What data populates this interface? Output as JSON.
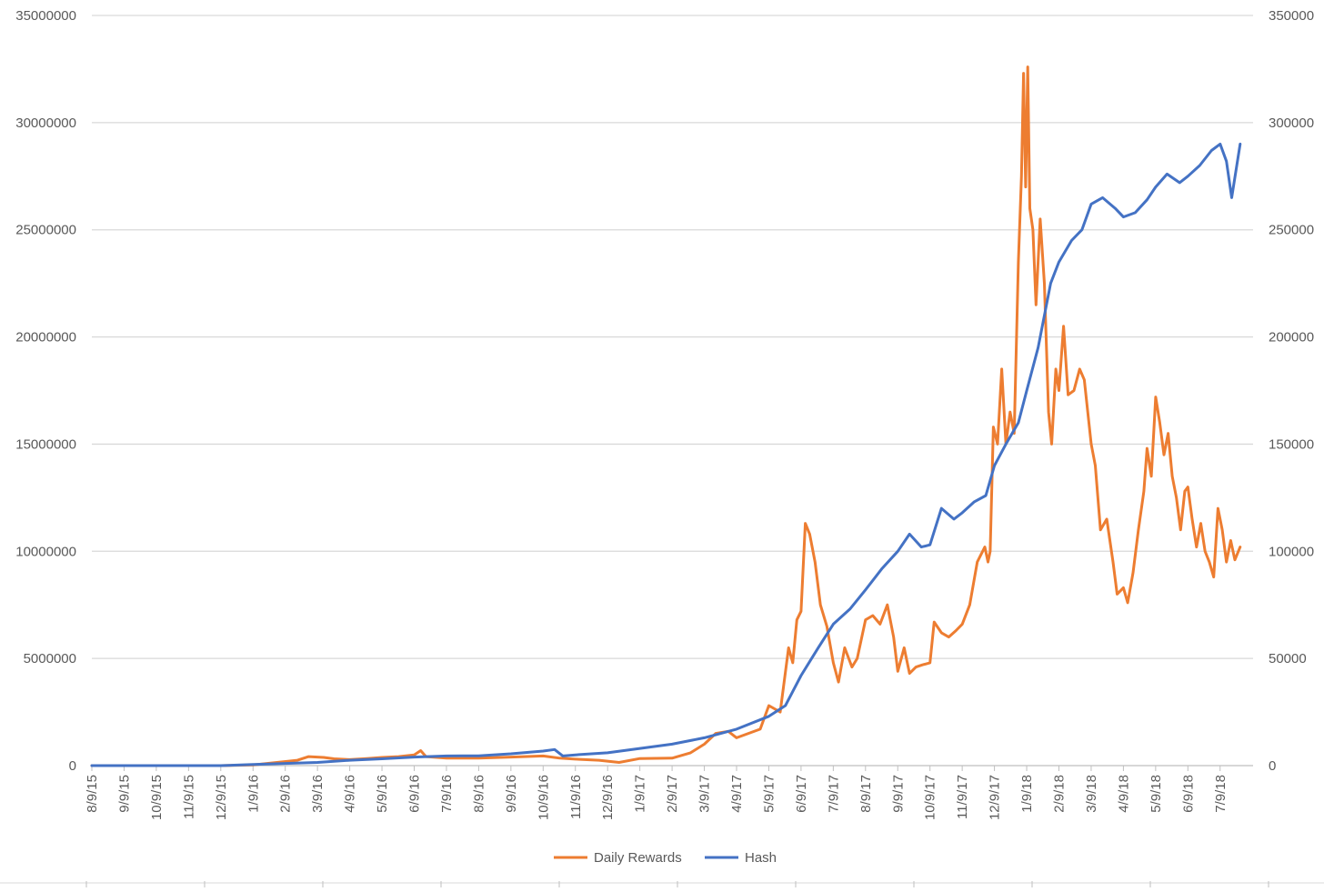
{
  "chart_data": {
    "type": "line",
    "title": "",
    "x_tick_labels": [
      "8/9/15",
      "9/9/15",
      "10/9/15",
      "11/9/15",
      "12/9/15",
      "1/9/16",
      "2/9/16",
      "3/9/16",
      "4/9/16",
      "5/9/16",
      "6/9/16",
      "7/9/16",
      "8/9/16",
      "9/9/16",
      "10/9/16",
      "11/9/16",
      "12/9/16",
      "1/9/17",
      "2/9/17",
      "3/9/17",
      "4/9/17",
      "5/9/17",
      "6/9/17",
      "7/9/17",
      "8/9/17",
      "9/9/17",
      "10/9/17",
      "11/9/17",
      "12/9/17",
      "1/9/18",
      "2/9/18",
      "3/9/18",
      "4/9/18",
      "5/9/18",
      "6/9/18",
      "7/9/18"
    ],
    "y_left": {
      "min": 0,
      "max": 35000000,
      "ticks": [
        "0",
        "5000000",
        "10000000",
        "15000000",
        "20000000",
        "25000000",
        "30000000",
        "35000000"
      ]
    },
    "y_right": {
      "min": 0,
      "max": 350000,
      "ticks": [
        "0",
        "50000",
        "100000",
        "150000",
        "200000",
        "250000",
        "300000",
        "350000"
      ]
    },
    "grid": true,
    "legend_position": "bottom",
    "series": [
      {
        "name": "Daily Rewards",
        "axis": "left",
        "color": "#ED7D31",
        "points": [
          [
            "8/9/15",
            0
          ],
          [
            "9/9/15",
            0
          ],
          [
            "10/9/15",
            0
          ],
          [
            "11/9/15",
            0
          ],
          [
            "12/9/15",
            0
          ],
          [
            "1/9/16",
            30000
          ],
          [
            "2/1/16",
            150000
          ],
          [
            "2/20/16",
            250000
          ],
          [
            "3/1/16",
            420000
          ],
          [
            "3/15/16",
            380000
          ],
          [
            "3/25/16",
            320000
          ],
          [
            "4/9/16",
            280000
          ],
          [
            "4/25/16",
            330000
          ],
          [
            "5/9/16",
            380000
          ],
          [
            "5/25/16",
            420000
          ],
          [
            "6/9/16",
            500000
          ],
          [
            "6/15/16",
            700000
          ],
          [
            "6/20/16",
            420000
          ],
          [
            "7/9/16",
            350000
          ],
          [
            "8/9/16",
            350000
          ],
          [
            "9/9/16",
            400000
          ],
          [
            "10/9/16",
            450000
          ],
          [
            "10/25/16",
            350000
          ],
          [
            "11/9/16",
            300000
          ],
          [
            "12/1/16",
            250000
          ],
          [
            "12/20/16",
            150000
          ],
          [
            "1/9/17",
            330000
          ],
          [
            "2/9/17",
            350000
          ],
          [
            "2/25/17",
            600000
          ],
          [
            "3/9/17",
            1000000
          ],
          [
            "3/20/17",
            1500000
          ],
          [
            "4/1/17",
            1600000
          ],
          [
            "4/9/17",
            1300000
          ],
          [
            "4/20/17",
            1500000
          ],
          [
            "5/1/17",
            1700000
          ],
          [
            "5/9/17",
            2800000
          ],
          [
            "5/20/17",
            2500000
          ],
          [
            "5/28/17",
            5500000
          ],
          [
            "6/1/17",
            4800000
          ],
          [
            "6/5/17",
            6800000
          ],
          [
            "6/9/17",
            7200000
          ],
          [
            "6/13/17",
            11300000
          ],
          [
            "6/17/17",
            10800000
          ],
          [
            "6/22/17",
            9500000
          ],
          [
            "6/27/17",
            7500000
          ],
          [
            "7/3/17",
            6500000
          ],
          [
            "7/9/17",
            4800000
          ],
          [
            "7/14/17",
            3900000
          ],
          [
            "7/20/17",
            5500000
          ],
          [
            "7/27/17",
            4600000
          ],
          [
            "8/1/17",
            5000000
          ],
          [
            "8/9/17",
            6800000
          ],
          [
            "8/16/17",
            7000000
          ],
          [
            "8/23/17",
            6600000
          ],
          [
            "8/30/17",
            7500000
          ],
          [
            "9/5/17",
            6000000
          ],
          [
            "9/9/17",
            4400000
          ],
          [
            "9/15/17",
            5500000
          ],
          [
            "9/20/17",
            4300000
          ],
          [
            "9/26/17",
            4600000
          ],
          [
            "10/2/17",
            4700000
          ],
          [
            "10/9/17",
            4800000
          ],
          [
            "10/13/17",
            6700000
          ],
          [
            "10/20/17",
            6200000
          ],
          [
            "10/27/17",
            6000000
          ],
          [
            "11/3/17",
            6300000
          ],
          [
            "11/9/17",
            6600000
          ],
          [
            "11/16/17",
            7500000
          ],
          [
            "11/23/17",
            9500000
          ],
          [
            "11/30/17",
            10200000
          ],
          [
            "12/3/17",
            9500000
          ],
          [
            "12/5/17",
            10000000
          ],
          [
            "12/8/17",
            15800000
          ],
          [
            "12/12/17",
            15000000
          ],
          [
            "12/16/17",
            18500000
          ],
          [
            "12/20/17",
            15000000
          ],
          [
            "12/24/17",
            16500000
          ],
          [
            "12/28/17",
            15500000
          ],
          [
            "1/1/18",
            23500000
          ],
          [
            "1/4/18",
            27500000
          ],
          [
            "1/6/18",
            32300000
          ],
          [
            "1/8/18",
            27000000
          ],
          [
            "1/10/18",
            32600000
          ],
          [
            "1/12/18",
            26000000
          ],
          [
            "1/15/18",
            25000000
          ],
          [
            "1/18/18",
            21500000
          ],
          [
            "1/22/18",
            25500000
          ],
          [
            "1/26/18",
            22500000
          ],
          [
            "1/30/18",
            16500000
          ],
          [
            "2/2/18",
            15000000
          ],
          [
            "2/6/18",
            18500000
          ],
          [
            "2/9/18",
            17500000
          ],
          [
            "2/13/18",
            20500000
          ],
          [
            "2/17/18",
            17300000
          ],
          [
            "2/22/18",
            17500000
          ],
          [
            "2/27/18",
            18500000
          ],
          [
            "3/3/18",
            18000000
          ],
          [
            "3/9/18",
            15000000
          ],
          [
            "3/13/18",
            14000000
          ],
          [
            "3/18/18",
            11000000
          ],
          [
            "3/24/18",
            11500000
          ],
          [
            "3/30/18",
            9500000
          ],
          [
            "4/3/18",
            8000000
          ],
          [
            "4/9/18",
            8300000
          ],
          [
            "4/13/18",
            7600000
          ],
          [
            "4/18/18",
            9000000
          ],
          [
            "4/23/18",
            11000000
          ],
          [
            "4/28/18",
            12800000
          ],
          [
            "5/1/18",
            14800000
          ],
          [
            "5/5/18",
            13500000
          ],
          [
            "5/9/18",
            17200000
          ],
          [
            "5/13/18",
            16000000
          ],
          [
            "5/17/18",
            14500000
          ],
          [
            "5/21/18",
            15500000
          ],
          [
            "5/25/18",
            13500000
          ],
          [
            "5/29/18",
            12500000
          ],
          [
            "6/2/18",
            11000000
          ],
          [
            "6/6/18",
            12800000
          ],
          [
            "6/9/18",
            13000000
          ],
          [
            "6/13/18",
            11500000
          ],
          [
            "6/17/18",
            10200000
          ],
          [
            "6/21/18",
            11300000
          ],
          [
            "6/25/18",
            10000000
          ],
          [
            "6/29/18",
            9500000
          ],
          [
            "7/3/18",
            8800000
          ],
          [
            "7/7/18",
            12000000
          ],
          [
            "7/11/18",
            11000000
          ],
          [
            "7/15/18",
            9500000
          ],
          [
            "7/19/18",
            10500000
          ],
          [
            "7/23/18",
            9600000
          ],
          [
            "7/28/18",
            10200000
          ]
        ]
      },
      {
        "name": "Hash",
        "axis": "right",
        "color": "#4472C4",
        "points": [
          [
            "8/9/15",
            0
          ],
          [
            "9/9/15",
            0
          ],
          [
            "10/9/15",
            0
          ],
          [
            "11/9/15",
            0
          ],
          [
            "12/9/15",
            0
          ],
          [
            "1/9/16",
            500
          ],
          [
            "2/9/16",
            1000
          ],
          [
            "3/9/16",
            1500
          ],
          [
            "4/9/16",
            2500
          ],
          [
            "5/9/16",
            3200
          ],
          [
            "6/9/16",
            4000
          ],
          [
            "7/9/16",
            4500
          ],
          [
            "8/9/16",
            4600
          ],
          [
            "9/9/16",
            5500
          ],
          [
            "10/9/16",
            6800
          ],
          [
            "10/20/16",
            7500
          ],
          [
            "10/28/16",
            4500
          ],
          [
            "11/9/16",
            5000
          ],
          [
            "12/9/16",
            6000
          ],
          [
            "1/9/17",
            8000
          ],
          [
            "2/9/17",
            10000
          ],
          [
            "3/9/17",
            13000
          ],
          [
            "4/9/17",
            17000
          ],
          [
            "5/9/17",
            23000
          ],
          [
            "5/25/17",
            28000
          ],
          [
            "6/9/17",
            42000
          ],
          [
            "6/25/17",
            55000
          ],
          [
            "7/9/17",
            66000
          ],
          [
            "7/25/17",
            73000
          ],
          [
            "8/9/17",
            82000
          ],
          [
            "8/25/17",
            92000
          ],
          [
            "9/9/17",
            100000
          ],
          [
            "9/20/17",
            108000
          ],
          [
            "10/1/17",
            102000
          ],
          [
            "10/9/17",
            103000
          ],
          [
            "10/20/17",
            120000
          ],
          [
            "11/1/17",
            115000
          ],
          [
            "11/9/17",
            118000
          ],
          [
            "11/20/17",
            123000
          ],
          [
            "12/1/17",
            126000
          ],
          [
            "12/9/17",
            140000
          ],
          [
            "12/20/17",
            150000
          ],
          [
            "1/1/18",
            160000
          ],
          [
            "1/9/18",
            175000
          ],
          [
            "1/20/18",
            195000
          ],
          [
            "2/1/18",
            225000
          ],
          [
            "2/9/18",
            235000
          ],
          [
            "2/20/18",
            245000
          ],
          [
            "3/1/18",
            250000
          ],
          [
            "3/9/18",
            262000
          ],
          [
            "3/20/18",
            265000
          ],
          [
            "4/1/18",
            260000
          ],
          [
            "4/9/18",
            256000
          ],
          [
            "4/20/18",
            258000
          ],
          [
            "5/1/18",
            264000
          ],
          [
            "5/9/18",
            270000
          ],
          [
            "5/20/18",
            276000
          ],
          [
            "6/1/18",
            272000
          ],
          [
            "6/9/18",
            275000
          ],
          [
            "6/20/18",
            280000
          ],
          [
            "7/1/18",
            287000
          ],
          [
            "7/9/18",
            290000
          ],
          [
            "7/15/18",
            282000
          ],
          [
            "7/20/18",
            265000
          ],
          [
            "7/28/18",
            290000
          ]
        ]
      }
    ]
  }
}
